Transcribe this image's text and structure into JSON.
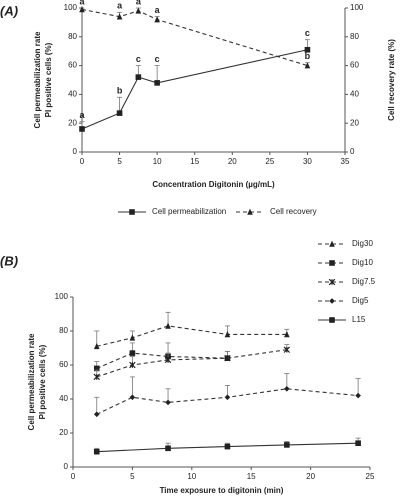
{
  "chart_data": [
    {
      "type": "line",
      "panel_label": "(A)",
      "xlabel": "Concentration Digitonin (µg/mL)",
      "ylabel": [
        "Cell permeabilization rate",
        "PI positive cells (%)"
      ],
      "y2label": "Cell recovery rate (%)",
      "xlim": [
        0,
        35
      ],
      "xticks": [
        0,
        5,
        10,
        15,
        20,
        25,
        30,
        35
      ],
      "ylim": [
        0,
        100
      ],
      "yticks": [
        0,
        20,
        40,
        60,
        80,
        100
      ],
      "y2lim": [
        0,
        100
      ],
      "y2ticks": [
        0,
        20,
        40,
        60,
        80,
        100
      ],
      "legend": "bottom",
      "series": [
        {
          "name": "Cell permeabilization",
          "color": "#333333",
          "line_style": "solid",
          "marker": "square",
          "x": [
            0,
            5,
            7.5,
            10,
            30
          ],
          "values": [
            16,
            27,
            52,
            48,
            71
          ],
          "errors": [
            5,
            11,
            8,
            12,
            7
          ],
          "letters": [
            "a",
            "b",
            "c",
            "c",
            "c"
          ]
        },
        {
          "name": "Cell recovery",
          "color": "#333333",
          "line_style": "dashed",
          "marker": "triangle",
          "axis": "y2",
          "x": [
            0,
            5,
            7.5,
            10,
            30
          ],
          "values": [
            99,
            94,
            98,
            92,
            60
          ],
          "errors": [
            1,
            3,
            2,
            2,
            2
          ],
          "letters": [
            "a",
            "a",
            "a",
            "a",
            "b"
          ]
        }
      ]
    },
    {
      "type": "line",
      "panel_label": "(B)",
      "xlabel": "Time exposure to digitonin (min)",
      "ylabel": [
        "Cell permeabilization rate",
        "PI positive cells (%)"
      ],
      "xlim": [
        0,
        25
      ],
      "xticks": [
        0,
        5,
        10,
        15,
        20,
        25
      ],
      "ylim": [
        0,
        100
      ],
      "yticks": [
        0,
        20,
        40,
        60,
        80,
        100
      ],
      "legend": "upper right",
      "series": [
        {
          "name": "Dig30",
          "color": "#333333",
          "line_style": "dashed",
          "marker": "triangle",
          "x": [
            2,
            5,
            8,
            13,
            18
          ],
          "values": [
            71,
            76,
            83,
            78,
            78
          ],
          "errors": [
            9,
            4,
            8,
            5,
            3
          ]
        },
        {
          "name": "Dig10",
          "color": "#333333",
          "line_style": "dashed",
          "marker": "square",
          "x": [
            2,
            5,
            8,
            13
          ],
          "values": [
            58,
            67,
            65,
            64
          ],
          "errors": [
            4,
            6,
            8,
            4
          ]
        },
        {
          "name": "Dig7.5",
          "color": "#333333",
          "line_style": "dashed",
          "marker": "x",
          "x": [
            2,
            5,
            8,
            13,
            18
          ],
          "values": [
            53,
            60,
            63,
            64,
            69
          ],
          "errors": [
            4,
            5,
            4,
            4,
            3
          ]
        },
        {
          "name": "Dig5",
          "color": "#333333",
          "line_style": "dashed",
          "marker": "diamond",
          "x": [
            2,
            5,
            8,
            13,
            18,
            24
          ],
          "values": [
            31,
            41,
            38,
            41,
            46,
            42
          ],
          "errors": [
            10,
            12,
            8,
            7,
            9,
            10
          ]
        },
        {
          "name": "L15",
          "color": "#333333",
          "line_style": "solid",
          "marker": "square",
          "x": [
            2,
            8,
            13,
            18,
            24
          ],
          "values": [
            9,
            11,
            12,
            13,
            14
          ],
          "errors": [
            2,
            3,
            2,
            2,
            3
          ]
        }
      ]
    }
  ]
}
